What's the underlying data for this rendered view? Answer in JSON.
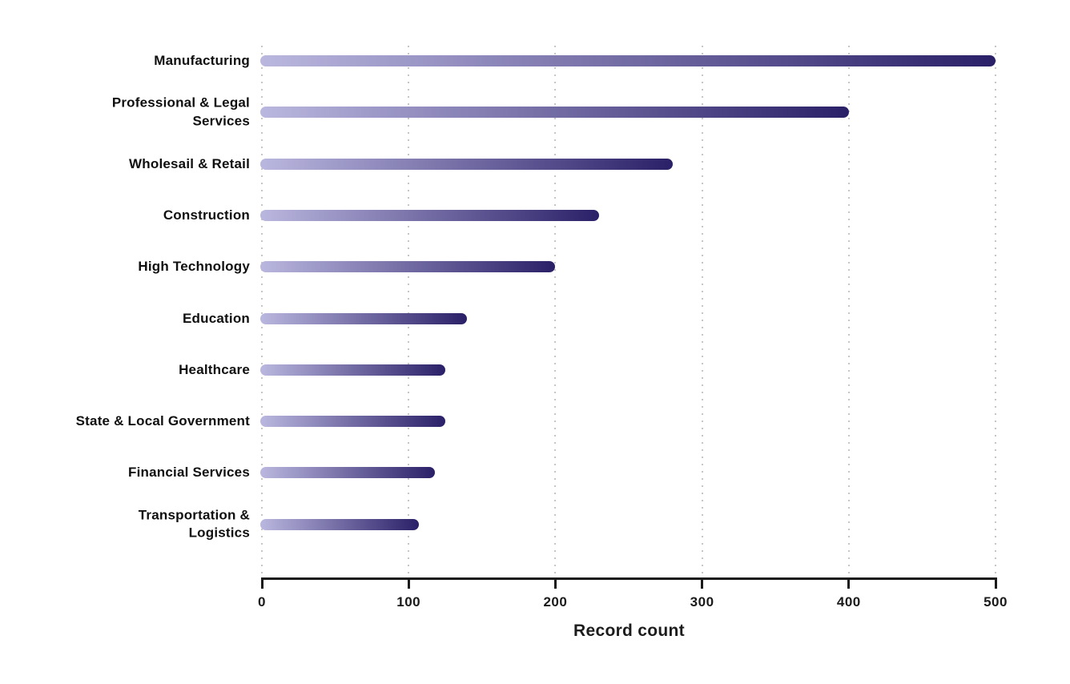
{
  "chart_data": {
    "type": "bar",
    "orientation": "horizontal",
    "title": "",
    "xlabel": "Record count",
    "ylabel": "",
    "xlim": [
      0,
      500
    ],
    "xticks": [
      0,
      100,
      200,
      300,
      400,
      500
    ],
    "xtick_labels": [
      "0",
      "100",
      "200",
      "300",
      "400",
      "500"
    ],
    "grid": "vertical dotted gridlines at each x tick",
    "legend": "none",
    "categories": [
      "Manufacturing",
      "Professional & Legal\nServices",
      "Wholesail & Retail",
      "Construction",
      "High Technology",
      "Education",
      "Healthcare",
      "State & Local Government",
      "Financial Services",
      "Transportation &\nLogistics"
    ],
    "values": [
      500,
      400,
      280,
      230,
      200,
      140,
      125,
      125,
      118,
      107
    ],
    "bar_style": {
      "shape": "rounded pill",
      "gradient_start": "#bab7df",
      "gradient_end": "#2a2068"
    }
  },
  "colors": {
    "background": "#ffffff",
    "gridline": "#c6c6c6",
    "axis": "#1a1a1a",
    "label_text": "#0f0f0f"
  }
}
